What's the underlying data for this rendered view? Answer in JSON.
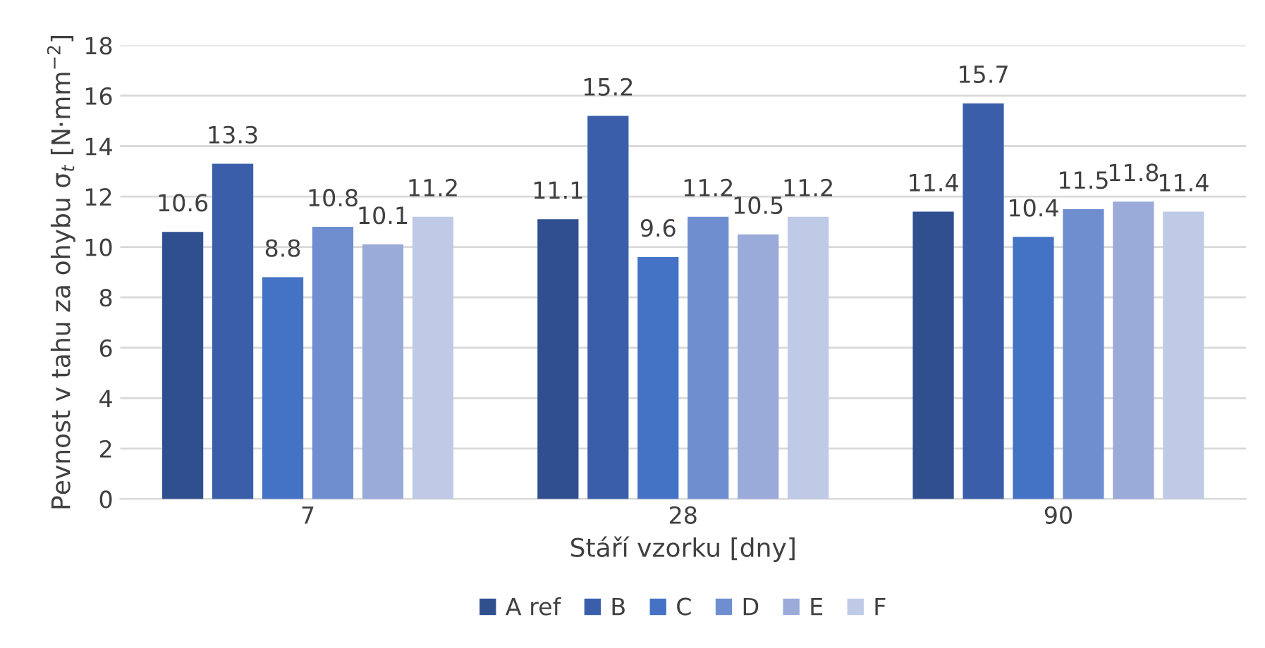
{
  "chart_data": {
    "type": "bar",
    "xlabel": "Stáří vzorku [dny]",
    "ylabel": "Pevnost v tahu za ohybu σ$_{t}$ [N·mm$^{−2}$]",
    "categories": [
      "7",
      "28",
      "90"
    ],
    "series": [
      {
        "name": "A ref",
        "color": "#2f4f8f",
        "values": [
          10.6,
          11.1,
          11.4
        ]
      },
      {
        "name": "B",
        "color": "#3a5ea9",
        "values": [
          13.3,
          15.2,
          15.7
        ]
      },
      {
        "name": "C",
        "color": "#4472c4",
        "values": [
          8.8,
          9.6,
          10.4
        ]
      },
      {
        "name": "D",
        "color": "#6f8ed0",
        "values": [
          10.8,
          11.2,
          11.5
        ]
      },
      {
        "name": "E",
        "color": "#9aaad9",
        "values": [
          10.1,
          10.5,
          11.8
        ]
      },
      {
        "name": "F",
        "color": "#bfcae7",
        "values": [
          11.2,
          11.2,
          11.4
        ]
      }
    ],
    "ylim": [
      0,
      18
    ],
    "yticks": [
      0,
      2,
      4,
      6,
      8,
      10,
      12,
      14,
      16,
      18
    ],
    "grid": "y",
    "legend": "bottom",
    "data_labels": true
  }
}
